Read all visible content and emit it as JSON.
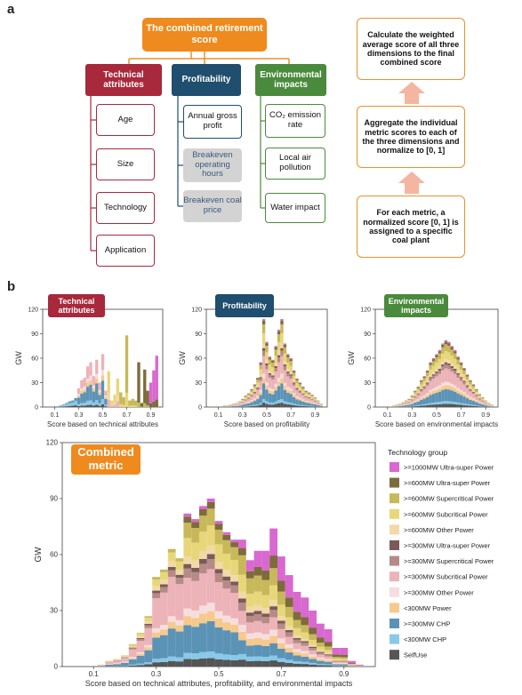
{
  "panel_a": {
    "letter": "a",
    "title": "The combined retirement score",
    "dimensions": [
      {
        "label": "Technical attributes",
        "color": "#a8283c",
        "items": [
          "Age",
          "Size",
          "Technology",
          "Application"
        ],
        "grey_items": []
      },
      {
        "label": "Profitability",
        "color": "#1f4e6e",
        "items": [
          "Annual gross profit"
        ],
        "grey_items": [
          "Breakeven operating hours",
          "Breakeven coal price"
        ]
      },
      {
        "label": "Environmental impacts",
        "color": "#4a8a3c",
        "items": [
          "CO₂ emission rate",
          "Local air pollution",
          "Water impact"
        ],
        "grey_items": []
      }
    ],
    "steps": [
      "Calculate the weighted average score of all three dimensions to the final combined score",
      "Aggregate the individual metric scores to each of the three dimensions and normalize to [0, 1]",
      "For each metric, a normalized score [0, 1] is assigned to a specific coal plant"
    ]
  },
  "panel_b": {
    "letter": "b",
    "combined_label": "Combined metric",
    "legend_title": "Technology group",
    "combined_xlabel": "Score based on technical attributes, profitability, and environmental impacts"
  },
  "chart_data": [
    {
      "type": "bar",
      "stacked": true,
      "title": "Technical attributes",
      "xlabel": "Score based on technical attributes",
      "ylabel": "GW",
      "xlim": [
        0,
        1
      ],
      "ylim": [
        0,
        120
      ],
      "yticks": [
        0,
        30,
        60,
        90,
        120
      ],
      "xticks": [
        0.1,
        0.3,
        0.5,
        0.7,
        0.9
      ],
      "x": [
        0.1,
        0.125,
        0.15,
        0.175,
        0.2,
        0.225,
        0.25,
        0.275,
        0.3,
        0.325,
        0.35,
        0.375,
        0.4,
        0.425,
        0.45,
        0.475,
        0.5,
        0.525,
        0.55,
        0.575,
        0.6,
        0.625,
        0.65,
        0.675,
        0.7,
        0.725,
        0.75,
        0.775,
        0.8,
        0.825,
        0.85,
        0.875,
        0.9,
        0.925,
        0.95
      ],
      "totals": [
        1,
        1,
        2,
        3,
        5,
        7,
        8,
        11,
        23,
        33,
        36,
        50,
        55,
        38,
        58,
        30,
        65,
        20,
        44,
        8,
        15,
        35,
        18,
        12,
        88,
        8,
        10,
        8,
        55,
        5,
        46,
        20,
        30,
        45,
        63
      ],
      "grid": false,
      "legend": "none"
    },
    {
      "type": "bar",
      "stacked": true,
      "title": "Profitability",
      "xlabel": "Score based on profitability",
      "ylabel": "GW",
      "xlim": [
        0,
        1
      ],
      "ylim": [
        0,
        120
      ],
      "yticks": [
        0,
        30,
        60,
        90,
        120
      ],
      "xticks": [
        0.1,
        0.3,
        0.5,
        0.7,
        0.9
      ],
      "x": [
        0.1,
        0.125,
        0.15,
        0.175,
        0.2,
        0.225,
        0.25,
        0.275,
        0.3,
        0.325,
        0.35,
        0.375,
        0.4,
        0.425,
        0.45,
        0.475,
        0.5,
        0.525,
        0.55,
        0.575,
        0.6,
        0.625,
        0.65,
        0.675,
        0.7,
        0.725,
        0.75,
        0.775,
        0.8,
        0.825,
        0.85,
        0.875,
        0.9,
        0.925,
        0.95
      ],
      "totals": [
        1,
        1,
        2,
        2,
        3,
        4,
        5,
        7,
        10,
        14,
        17,
        22,
        28,
        36,
        55,
        108,
        80,
        62,
        58,
        75,
        95,
        108,
        78,
        65,
        60,
        45,
        35,
        30,
        25,
        20,
        18,
        15,
        12,
        8,
        4
      ],
      "grid": false,
      "legend": "none"
    },
    {
      "type": "bar",
      "stacked": true,
      "title": "Environmental impacts",
      "xlabel": "Score based on environmental impacts",
      "ylabel": "GW",
      "xlim": [
        0,
        1
      ],
      "ylim": [
        0,
        120
      ],
      "yticks": [
        0,
        30,
        60,
        90,
        120
      ],
      "xticks": [
        0.1,
        0.3,
        0.5,
        0.7,
        0.9
      ],
      "x": [
        0.1,
        0.125,
        0.15,
        0.175,
        0.2,
        0.225,
        0.25,
        0.275,
        0.3,
        0.325,
        0.35,
        0.375,
        0.4,
        0.425,
        0.45,
        0.475,
        0.5,
        0.525,
        0.55,
        0.575,
        0.6,
        0.625,
        0.65,
        0.675,
        0.7,
        0.725,
        0.75,
        0.775,
        0.8,
        0.825,
        0.85,
        0.875,
        0.9,
        0.925,
        0.95
      ],
      "totals": [
        1,
        1,
        2,
        3,
        4,
        6,
        8,
        10,
        14,
        20,
        25,
        33,
        38,
        45,
        55,
        60,
        65,
        70,
        78,
        82,
        80,
        75,
        70,
        62,
        55,
        48,
        40,
        33,
        28,
        22,
        16,
        12,
        8,
        5,
        3
      ],
      "grid": false,
      "legend": "none"
    },
    {
      "type": "bar",
      "stacked": true,
      "title": "",
      "xlabel": "Score based on technical attributes, profitability, and environmental impacts",
      "ylabel": "GW",
      "xlim": [
        0,
        1
      ],
      "ylim": [
        0,
        120
      ],
      "yticks": [
        0,
        30,
        60,
        90,
        120
      ],
      "xticks": [
        0.1,
        0.3,
        0.5,
        0.7,
        0.9
      ],
      "x": [
        0.1,
        0.125,
        0.15,
        0.175,
        0.2,
        0.225,
        0.25,
        0.275,
        0.3,
        0.325,
        0.35,
        0.375,
        0.4,
        0.425,
        0.45,
        0.475,
        0.5,
        0.525,
        0.55,
        0.575,
        0.6,
        0.625,
        0.65,
        0.675,
        0.7,
        0.725,
        0.75,
        0.775,
        0.8,
        0.825,
        0.85,
        0.875,
        0.9,
        0.925,
        0.95
      ],
      "totals": [
        0,
        1,
        3,
        4,
        6,
        12,
        18,
        27,
        48,
        52,
        63,
        58,
        82,
        79,
        86,
        90,
        78,
        72,
        68,
        68,
        57,
        62,
        62,
        74,
        59,
        49,
        40,
        37,
        30,
        23,
        20,
        10,
        10,
        3,
        1
      ],
      "grid": false,
      "legend": "right",
      "series_names": [
        ">=1000MW Ultra-super Power",
        ">=600MW Ultra-super Power",
        ">=600MW Supercritical Power",
        ">=600MW Subcritical Power",
        ">=600MW Other Power",
        ">=300MW Ultra-super Power",
        ">=300MW Supercritical Power",
        ">=300MW Subcritical Power",
        ">=300MW Other Power",
        "<300MW Power",
        ">=300MW CHP",
        "<300MW CHP",
        "SelfUse"
      ],
      "series_colors": [
        "#d968d0",
        "#7e6b3b",
        "#c7b85a",
        "#e8d77a",
        "#f1d9a8",
        "#7a5a5a",
        "#b68a86",
        "#ecb3b8",
        "#f6dede",
        "#f6c98c",
        "#5b93b6",
        "#88c8e8",
        "#555555"
      ]
    }
  ]
}
